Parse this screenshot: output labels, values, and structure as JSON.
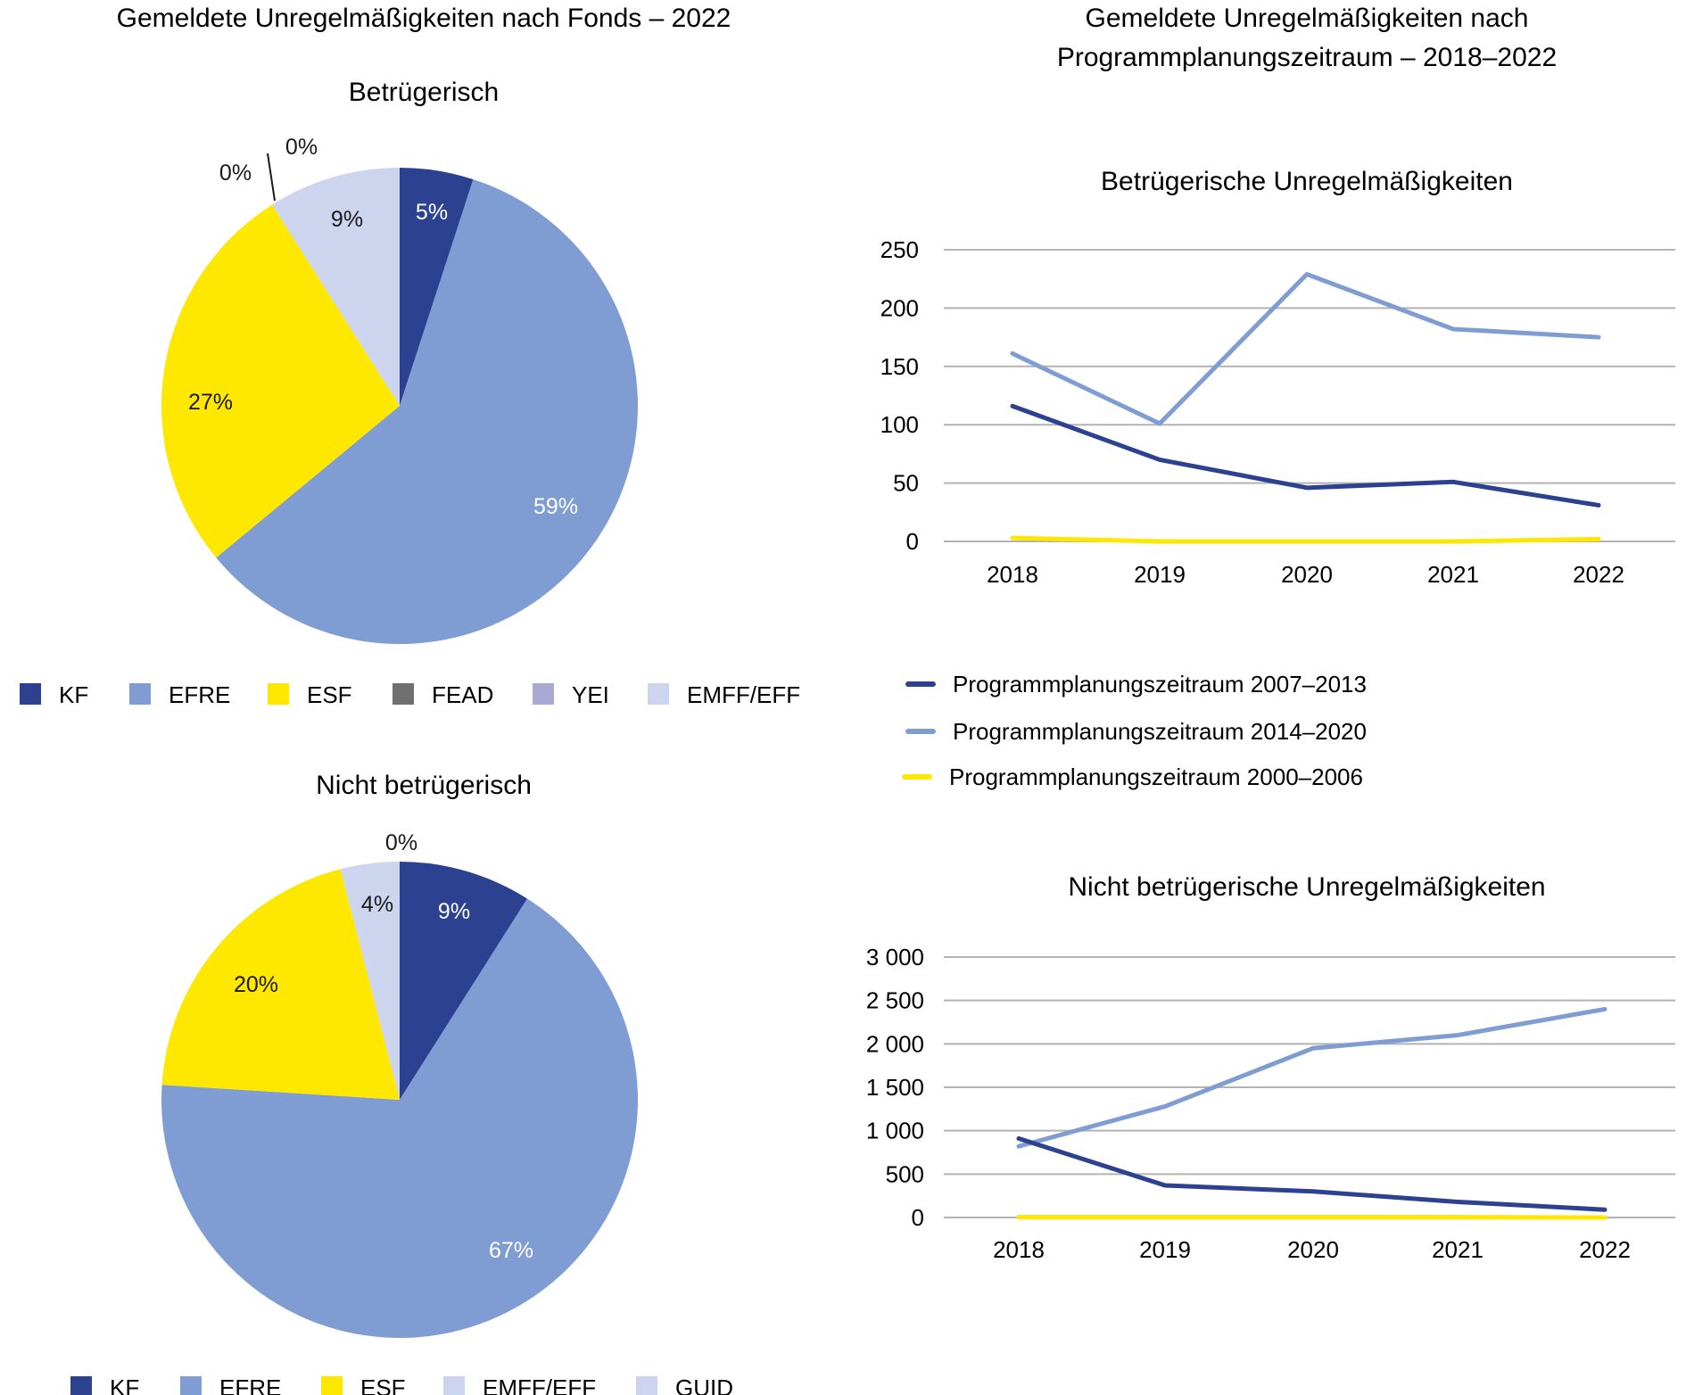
{
  "left_title": "Gemeldete Unregelmäßigkeiten nach Fonds – 2022",
  "right_title_line1": "Gemeldete Unregelmäßigkeiten nach",
  "right_title_line2": "Programmplanungszeitraum – 2018–2022",
  "colors": {
    "KF": "#2c4290",
    "EFRE": "#7f9dd3",
    "ESF": "#ffe800",
    "FEAD": "#707070",
    "YEI": "#a9a9d6",
    "EMFF/EFF": "#ccd4ee",
    "GUID": "#ccd4ee",
    "grid": "#b3b3b3"
  },
  "chart_data": [
    {
      "type": "pie",
      "title": "Betrügerisch",
      "slices": [
        {
          "label": "KF",
          "value": 5,
          "text": "5%"
        },
        {
          "label": "EFRE",
          "value": 59,
          "text": "59%"
        },
        {
          "label": "ESF",
          "value": 27,
          "text": "27%"
        },
        {
          "label": "FEAD",
          "value": 0,
          "text": "0%"
        },
        {
          "label": "YEI",
          "value": 0,
          "text": "0%"
        },
        {
          "label": "EMFF/EFF",
          "value": 9,
          "text": "9%"
        }
      ],
      "legend": [
        "KF",
        "EFRE",
        "ESF",
        "FEAD",
        "YEI",
        "EMFF/EFF"
      ]
    },
    {
      "type": "pie",
      "title": "Nicht betrügerisch",
      "slices": [
        {
          "label": "KF",
          "value": 9,
          "text": "9%"
        },
        {
          "label": "EFRE",
          "value": 67,
          "text": "67%"
        },
        {
          "label": "ESF",
          "value": 20,
          "text": "20%"
        },
        {
          "label": "EMFF/EFF",
          "value": 0,
          "text": "0%"
        },
        {
          "label": "GUID",
          "value": 4,
          "text": "4%"
        }
      ],
      "legend": [
        "KF",
        "EFRE",
        "ESF",
        "EMFF/EFF",
        "GUID"
      ]
    },
    {
      "type": "line",
      "title": "Betrügerische Unregelmäßigkeiten",
      "x": [
        "2018",
        "2019",
        "2020",
        "2021",
        "2022"
      ],
      "ylim": [
        0,
        250
      ],
      "yticks": [
        "0",
        "50",
        "100",
        "150",
        "200",
        "250"
      ],
      "series": [
        {
          "name": "Programmplanungszeitraum 2007–2013",
          "values": [
            116,
            70,
            46,
            51,
            31
          ]
        },
        {
          "name": "Programmplanungszeitraum 2014–2020",
          "values": [
            161,
            101,
            229,
            182,
            175
          ]
        },
        {
          "name": "Programmplanungszeitraum 2000–2006",
          "values": [
            3,
            0,
            0,
            0,
            2
          ]
        }
      ]
    },
    {
      "type": "line",
      "title": "Nicht betrügerische Unregelmäßigkeiten",
      "x": [
        "2018",
        "2019",
        "2020",
        "2021",
        "2022"
      ],
      "ylim": [
        0,
        3000
      ],
      "yticks": [
        "0",
        "500",
        "1 000",
        "1 500",
        "2 000",
        "2 500",
        "3 000"
      ],
      "series": [
        {
          "name": "Programmplanungszeitraum 2007–2013",
          "values": [
            910,
            370,
            300,
            180,
            90
          ]
        },
        {
          "name": "Programmplanungszeitraum 2014–2020",
          "values": [
            820,
            1280,
            1950,
            2100,
            2400
          ]
        },
        {
          "name": "Programmplanungszeitraum 2000–2006",
          "values": [
            5,
            5,
            5,
            5,
            0
          ]
        }
      ]
    }
  ]
}
